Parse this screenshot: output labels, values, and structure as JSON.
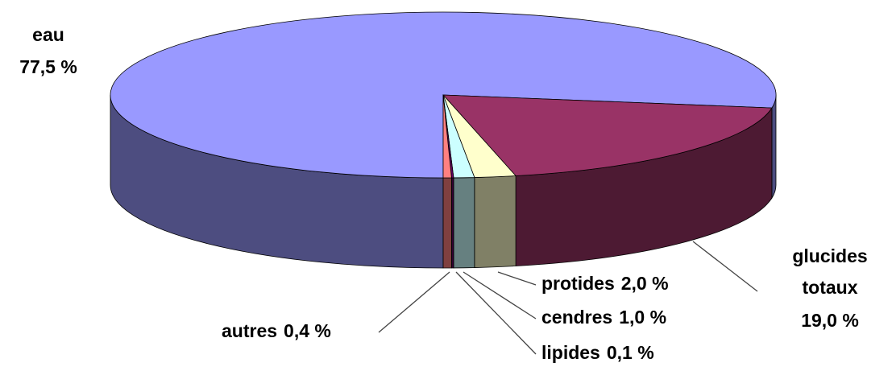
{
  "chart_data": {
    "type": "pie",
    "categories": [
      "eau",
      "glucides totaux",
      "protides",
      "cendres",
      "lipides",
      "autres"
    ],
    "values": [
      77.5,
      19.0,
      2.0,
      1.0,
      0.1,
      0.4
    ],
    "value_labels": [
      "77,5 %",
      "19,0 %",
      "2,0 %",
      "1,0 %",
      "0,1 %",
      "0,4 %"
    ],
    "colors": [
      "#9999ff",
      "#993366",
      "#ffffcc",
      "#ccffff",
      "#660066",
      "#ff8080"
    ],
    "three_d": true
  }
}
